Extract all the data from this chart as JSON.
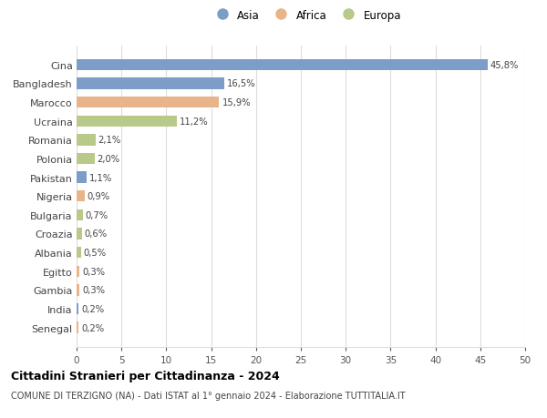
{
  "countries": [
    "Cina",
    "Bangladesh",
    "Marocco",
    "Ucraina",
    "Romania",
    "Polonia",
    "Pakistan",
    "Nigeria",
    "Bulgaria",
    "Croazia",
    "Albania",
    "Egitto",
    "Gambia",
    "India",
    "Senegal"
  ],
  "values": [
    45.8,
    16.5,
    15.9,
    11.2,
    2.1,
    2.0,
    1.1,
    0.9,
    0.7,
    0.6,
    0.5,
    0.3,
    0.3,
    0.2,
    0.2
  ],
  "labels": [
    "45,8%",
    "16,5%",
    "15,9%",
    "11,2%",
    "2,1%",
    "2,0%",
    "1,1%",
    "0,9%",
    "0,7%",
    "0,6%",
    "0,5%",
    "0,3%",
    "0,3%",
    "0,2%",
    "0,2%"
  ],
  "continents": [
    "Asia",
    "Asia",
    "Africa",
    "Europa",
    "Europa",
    "Europa",
    "Asia",
    "Africa",
    "Europa",
    "Europa",
    "Europa",
    "Africa",
    "Africa",
    "Asia",
    "Africa"
  ],
  "colors": {
    "Asia": "#7b9dc8",
    "Africa": "#e8b48a",
    "Europa": "#b8c98a"
  },
  "legend_labels": [
    "Asia",
    "Africa",
    "Europa"
  ],
  "xlim": [
    0,
    50
  ],
  "xticks": [
    0,
    5,
    10,
    15,
    20,
    25,
    30,
    35,
    40,
    45,
    50
  ],
  "title": "Cittadini Stranieri per Cittadinanza - 2024",
  "subtitle": "COMUNE DI TERZIGNO (NA) - Dati ISTAT al 1° gennaio 2024 - Elaborazione TUTTITALIA.IT",
  "bg_color": "#ffffff",
  "grid_color": "#dddddd",
  "bar_height": 0.6
}
